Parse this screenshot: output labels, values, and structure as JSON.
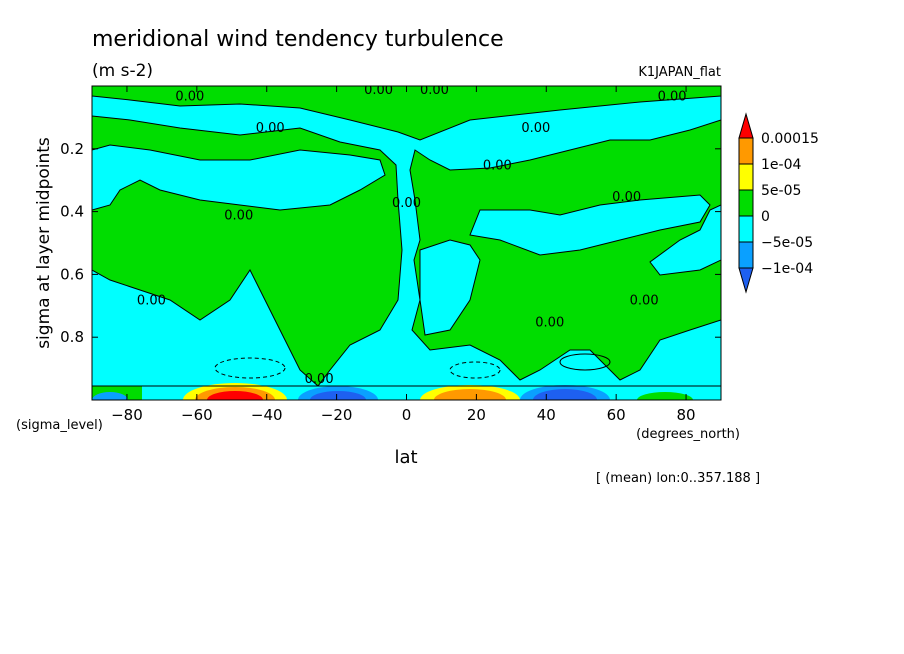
{
  "chart_data": {
    "type": "heatmap",
    "title": "meridional wind tendency turbulence",
    "units": "(m s-2)",
    "dataset": "K1JAPAN_flat",
    "xlabel": "lat",
    "ylabel": "sigma at layer midpoints",
    "xunits": "(degrees_north)",
    "yunits": "(sigma_level)",
    "note": "[ (mean) lon:0..357.188 ]",
    "xlim": [
      -90,
      90
    ],
    "ylim": [
      1.0,
      0.0
    ],
    "x_ticks": [
      -80,
      -60,
      -40,
      -20,
      0,
      20,
      40,
      60,
      80
    ],
    "x_tick_labels": [
      "−80",
      "−60",
      "−40",
      "−20",
      "0",
      "20",
      "40",
      "60",
      "80"
    ],
    "y_ticks": [
      0.2,
      0.4,
      0.6,
      0.8
    ],
    "y_tick_labels": [
      "0.2",
      "0.4",
      "0.6",
      "0.8"
    ],
    "colorbar": {
      "labels": [
        "0.00015",
        "1e-04",
        "5e-05",
        "0",
        "−5e-05",
        "−1e-04"
      ],
      "colors": [
        "#1e60f0",
        "#0aa0ff",
        "#00ffff",
        "#00dd00",
        "#ffff00",
        "#ff9900",
        "#ff0000"
      ]
    },
    "contour_labels": [
      {
        "text": "0.00",
        "lat": -62,
        "sigma": 0.03
      },
      {
        "text": "0.00",
        "lat": -8,
        "sigma": 0.01
      },
      {
        "text": "0.00",
        "lat": 8,
        "sigma": 0.01
      },
      {
        "text": "0.00",
        "lat": 76,
        "sigma": 0.03
      },
      {
        "text": "0.00",
        "lat": -39,
        "sigma": 0.13
      },
      {
        "text": "0.00",
        "lat": 37,
        "sigma": 0.13
      },
      {
        "text": "0.00",
        "lat": 26,
        "sigma": 0.25
      },
      {
        "text": "0.00",
        "lat": 63,
        "sigma": 0.35
      },
      {
        "text": "0.00",
        "lat": -48,
        "sigma": 0.41
      },
      {
        "text": "0.00",
        "lat": 0,
        "sigma": 0.37
      },
      {
        "text": "0.00",
        "lat": -73,
        "sigma": 0.68
      },
      {
        "text": "0.00",
        "lat": 68,
        "sigma": 0.68
      },
      {
        "text": "0.00",
        "lat": 41,
        "sigma": 0.75
      },
      {
        "text": "0.00",
        "lat": -25,
        "sigma": 0.93
      }
    ]
  }
}
